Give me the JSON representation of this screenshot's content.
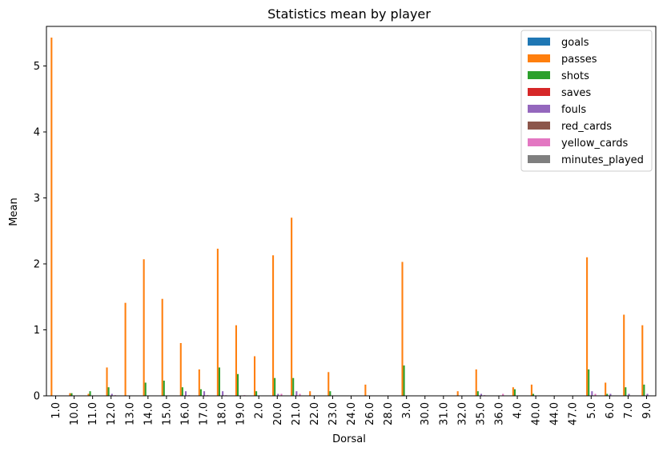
{
  "chart_data": {
    "type": "bar",
    "title": "Statistics mean by player",
    "xlabel": "Dorsal",
    "ylabel": "Mean",
    "ylim": [
      0,
      5.6
    ],
    "yticks": [
      "0",
      "1",
      "2",
      "3",
      "4",
      "5"
    ],
    "grid": false,
    "legend_position": "top-right",
    "categories": [
      "1.0",
      "10.0",
      "11.0",
      "12.0",
      "13.0",
      "14.0",
      "15.0",
      "16.0",
      "17.0",
      "18.0",
      "19.0",
      "2.0",
      "20.0",
      "21.0",
      "22.0",
      "23.0",
      "24.0",
      "26.0",
      "28.0",
      "3.0",
      "30.0",
      "31.0",
      "32.0",
      "35.0",
      "36.0",
      "4.0",
      "40.0",
      "44.0",
      "47.0",
      "5.0",
      "6.0",
      "7.0",
      "9.0"
    ],
    "series": [
      {
        "name": "goals",
        "color": "#1f77b4",
        "values": [
          0,
          0,
          0,
          0,
          0,
          0,
          0,
          0,
          0,
          0,
          0,
          0,
          0,
          0,
          0,
          0,
          0,
          0,
          0,
          0,
          0,
          0,
          0,
          0,
          0,
          0,
          0,
          0,
          0,
          0,
          0,
          0,
          0
        ]
      },
      {
        "name": "passes",
        "color": "#ff7f0e",
        "values": [
          5.43,
          0.04,
          0.03,
          0.43,
          1.41,
          2.07,
          1.47,
          0.8,
          0.4,
          2.23,
          1.07,
          0.6,
          2.13,
          2.7,
          0.07,
          0.36,
          0,
          0.17,
          0,
          2.03,
          0,
          0,
          0.07,
          0.4,
          0,
          0.13,
          0.17,
          0,
          0,
          2.1,
          0.2,
          1.23,
          1.07
        ]
      },
      {
        "name": "shots",
        "color": "#2ca02c",
        "values": [
          0,
          0.04,
          0.07,
          0.13,
          0,
          0.2,
          0.23,
          0.13,
          0.1,
          0.43,
          0.33,
          0.07,
          0.27,
          0.27,
          0,
          0.07,
          0,
          0,
          0,
          0.46,
          0,
          0,
          0,
          0.07,
          0,
          0.1,
          0.03,
          0,
          0,
          0.4,
          0.03,
          0.13,
          0.17
        ]
      },
      {
        "name": "saves",
        "color": "#d62728",
        "values": [
          0,
          0,
          0,
          0,
          0,
          0,
          0,
          0,
          0,
          0,
          0,
          0,
          0,
          0,
          0,
          0,
          0,
          0,
          0,
          0,
          0,
          0,
          0,
          0,
          0,
          0,
          0,
          0,
          0,
          0,
          0,
          0,
          0
        ]
      },
      {
        "name": "fouls",
        "color": "#9467bd",
        "values": [
          0,
          0,
          0,
          0.03,
          0,
          0,
          0,
          0.07,
          0.07,
          0.07,
          0,
          0,
          0.03,
          0.07,
          0,
          0,
          0,
          0,
          0,
          0,
          0,
          0,
          0,
          0.03,
          0,
          0,
          0,
          0,
          0,
          0.07,
          0.03,
          0.03,
          0.03
        ]
      },
      {
        "name": "red_cards",
        "color": "#8c564b",
        "values": [
          0,
          0,
          0,
          0,
          0,
          0,
          0,
          0,
          0,
          0,
          0,
          0,
          0,
          0,
          0,
          0,
          0,
          0,
          0,
          0,
          0,
          0,
          0,
          0,
          0,
          0,
          0,
          0,
          0,
          0,
          0,
          0,
          0
        ]
      },
      {
        "name": "yellow_cards",
        "color": "#e377c2",
        "values": [
          0,
          0,
          0,
          0.01,
          0,
          0,
          0,
          0.01,
          0.01,
          0.01,
          0.01,
          0,
          0.03,
          0.03,
          0,
          0,
          0,
          0,
          0,
          0,
          0,
          0,
          0,
          0.01,
          0.03,
          0,
          0,
          0,
          0,
          0.03,
          0,
          0,
          0
        ]
      },
      {
        "name": "minutes_played",
        "color": "#7f7f7f",
        "values": [
          0,
          0,
          0,
          0,
          0,
          0,
          0,
          0,
          0,
          0,
          0,
          0,
          0,
          0,
          0,
          0,
          0,
          0,
          0,
          0,
          0,
          0,
          0,
          0,
          0,
          0,
          0,
          0,
          0,
          0,
          0,
          0,
          0
        ]
      }
    ]
  }
}
